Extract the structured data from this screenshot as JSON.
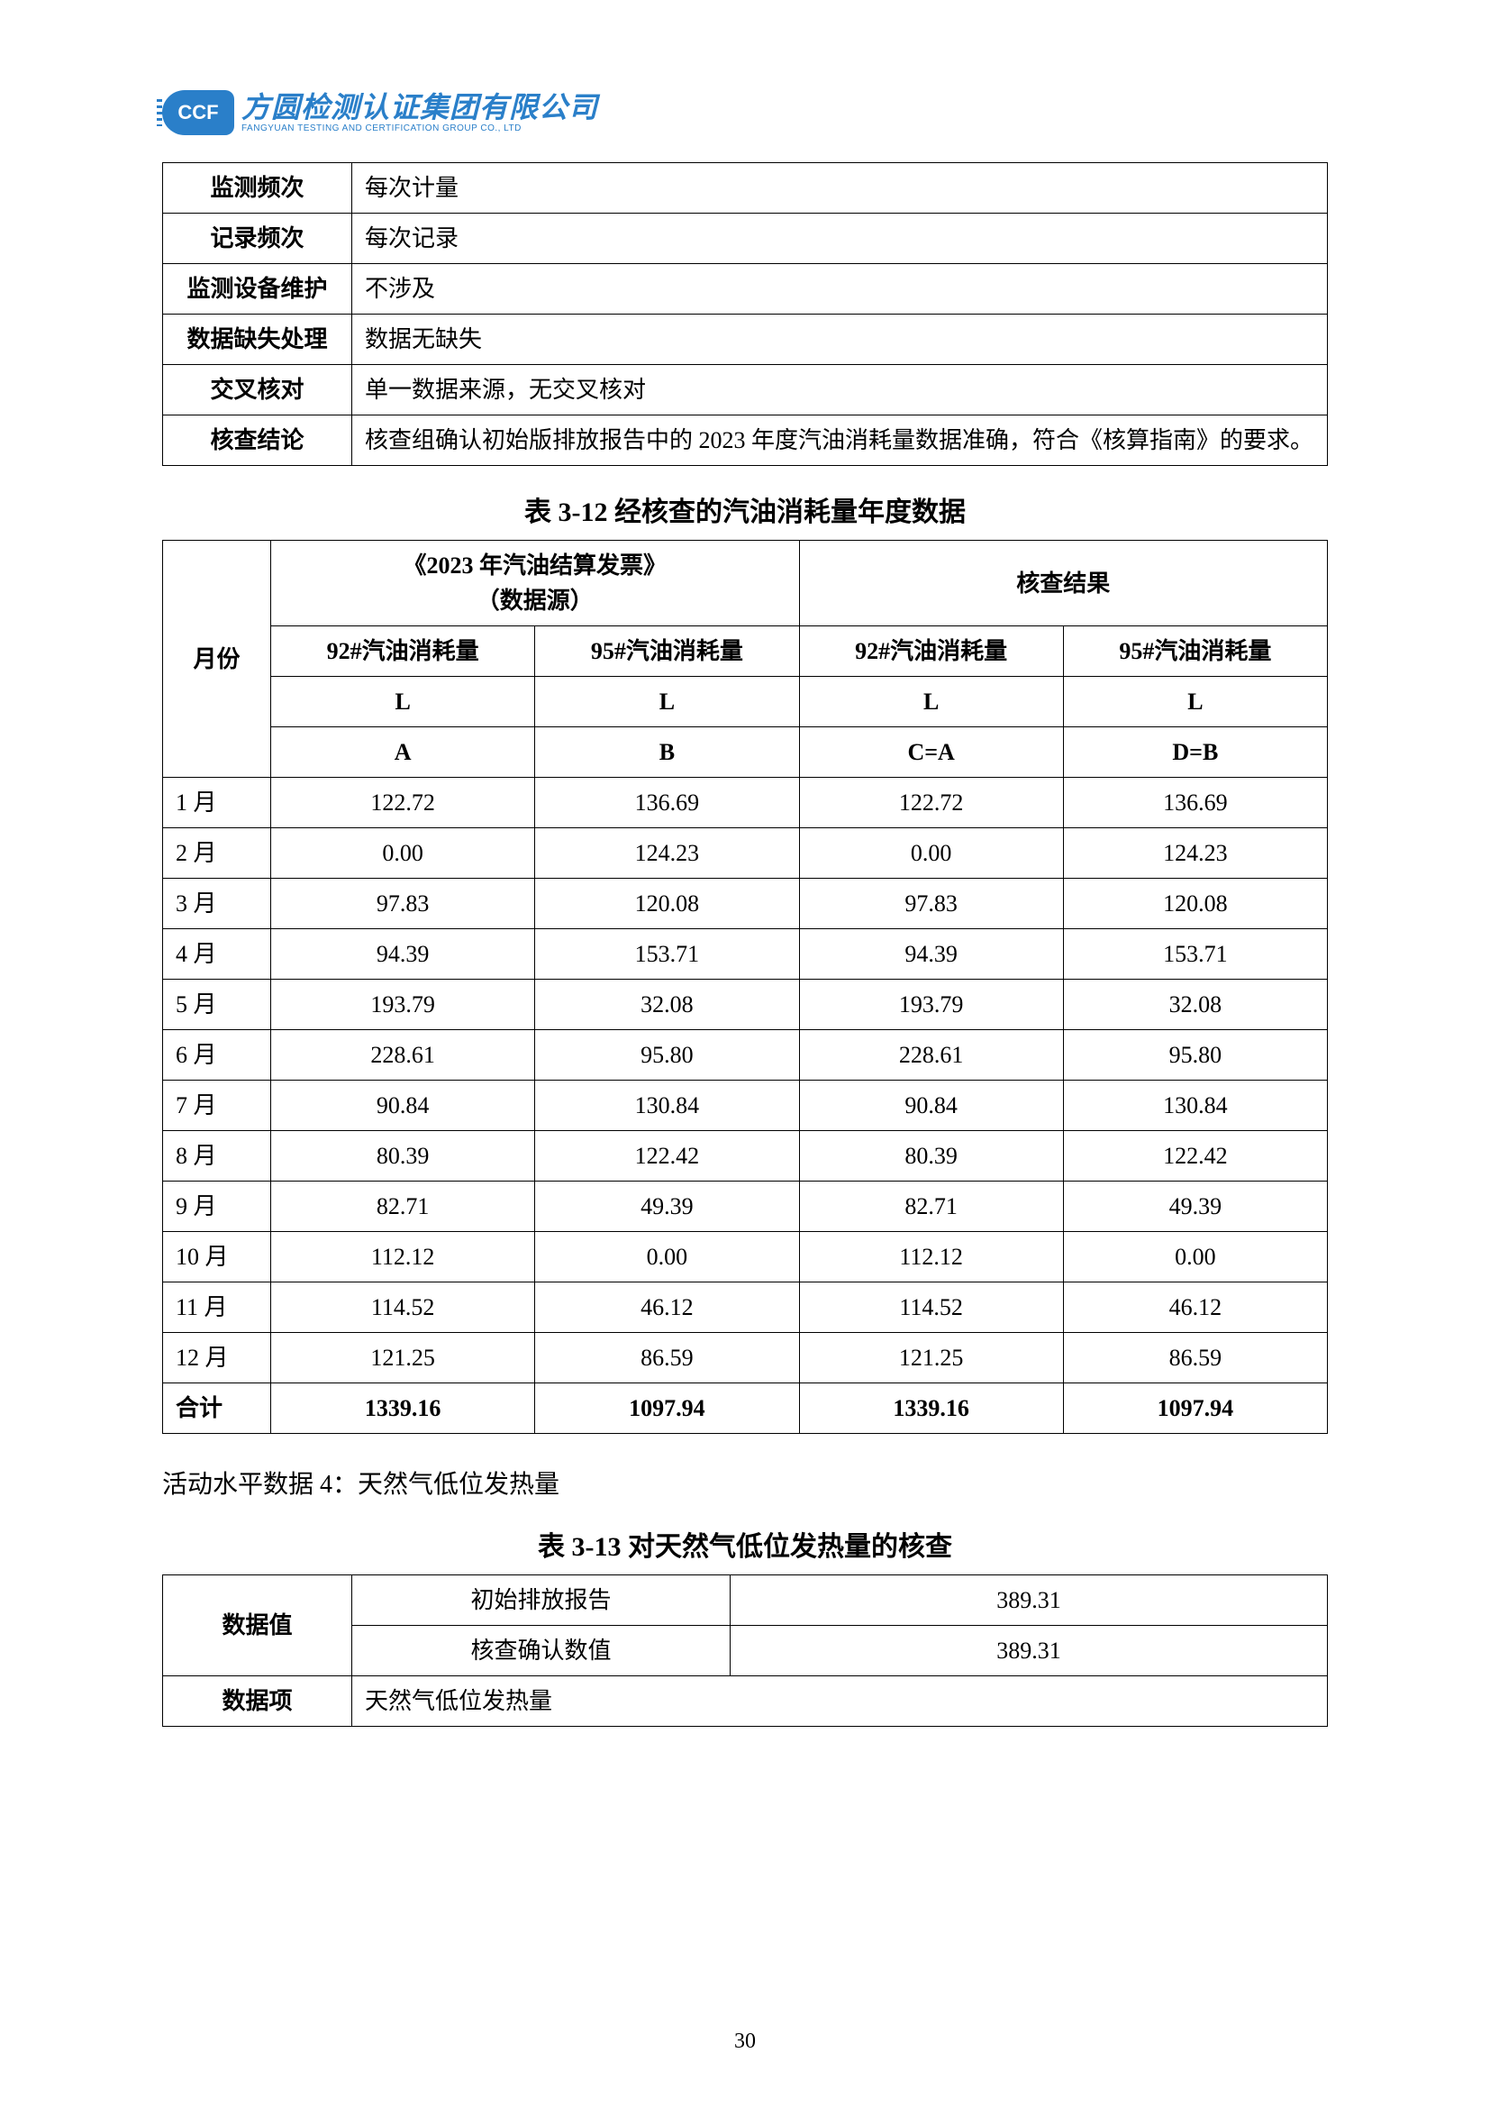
{
  "logo": {
    "badge": "CCF",
    "cn": "方圆检测认证集团有限公司",
    "en": "FANGYUAN TESTING AND CERTIFICATION GROUP CO., LTD"
  },
  "table1": {
    "rows": [
      {
        "label": "监测频次",
        "value": "每次计量"
      },
      {
        "label": "记录频次",
        "value": "每次记录"
      },
      {
        "label": "监测设备维护",
        "value": "不涉及"
      },
      {
        "label": "数据缺失处理",
        "value": "数据无缺失"
      },
      {
        "label": "交叉核对",
        "value": "单一数据来源，无交叉核对"
      },
      {
        "label": "核查结论",
        "value": "核查组确认初始版排放报告中的 2023 年度汽油消耗量数据准确，符合《核算指南》的要求。"
      }
    ]
  },
  "table2": {
    "title": "表 3-12  经核查的汽油消耗量年度数据",
    "header": {
      "month": "月份",
      "source_group": "《2023 年汽油结算发票》\n（数据源）",
      "verify_group": "核查结果",
      "c92": "92#汽油消耗量",
      "c95": "95#汽油消耗量",
      "unit": "L",
      "A": "A",
      "B": "B",
      "CA": "C=A",
      "DB": "D=B"
    },
    "rows": [
      {
        "m": "1 月",
        "a": "122.72",
        "b": "136.69",
        "c": "122.72",
        "d": "136.69"
      },
      {
        "m": "2 月",
        "a": "0.00",
        "b": "124.23",
        "c": "0.00",
        "d": "124.23"
      },
      {
        "m": "3 月",
        "a": "97.83",
        "b": "120.08",
        "c": "97.83",
        "d": "120.08"
      },
      {
        "m": "4 月",
        "a": "94.39",
        "b": "153.71",
        "c": "94.39",
        "d": "153.71"
      },
      {
        "m": "5 月",
        "a": "193.79",
        "b": "32.08",
        "c": "193.79",
        "d": "32.08"
      },
      {
        "m": "6 月",
        "a": "228.61",
        "b": "95.80",
        "c": "228.61",
        "d": "95.80"
      },
      {
        "m": "7 月",
        "a": "90.84",
        "b": "130.84",
        "c": "90.84",
        "d": "130.84"
      },
      {
        "m": "8 月",
        "a": "80.39",
        "b": "122.42",
        "c": "80.39",
        "d": "122.42"
      },
      {
        "m": "9 月",
        "a": "82.71",
        "b": "49.39",
        "c": "82.71",
        "d": "49.39"
      },
      {
        "m": "10 月",
        "a": "112.12",
        "b": "0.00",
        "c": "112.12",
        "d": "0.00"
      },
      {
        "m": "11 月",
        "a": "114.52",
        "b": "46.12",
        "c": "114.52",
        "d": "46.12"
      },
      {
        "m": "12 月",
        "a": "121.25",
        "b": "86.59",
        "c": "121.25",
        "d": "86.59"
      }
    ],
    "total": {
      "m": "合计",
      "a": "1339.16",
      "b": "1097.94",
      "c": "1339.16",
      "d": "1097.94"
    }
  },
  "section4": {
    "heading": "活动水平数据 4：天然气低位发热量"
  },
  "table3": {
    "title": "表 3-13  对天然气低位发热量的核查",
    "rows": {
      "data_value_label": "数据值",
      "initial_label": "初始排放报告",
      "initial_value": "389.31",
      "verified_label": "核查确认数值",
      "verified_value": "389.31",
      "data_item_label": "数据项",
      "data_item_value": "天然气低位发热量"
    }
  },
  "pageNumber": "30"
}
